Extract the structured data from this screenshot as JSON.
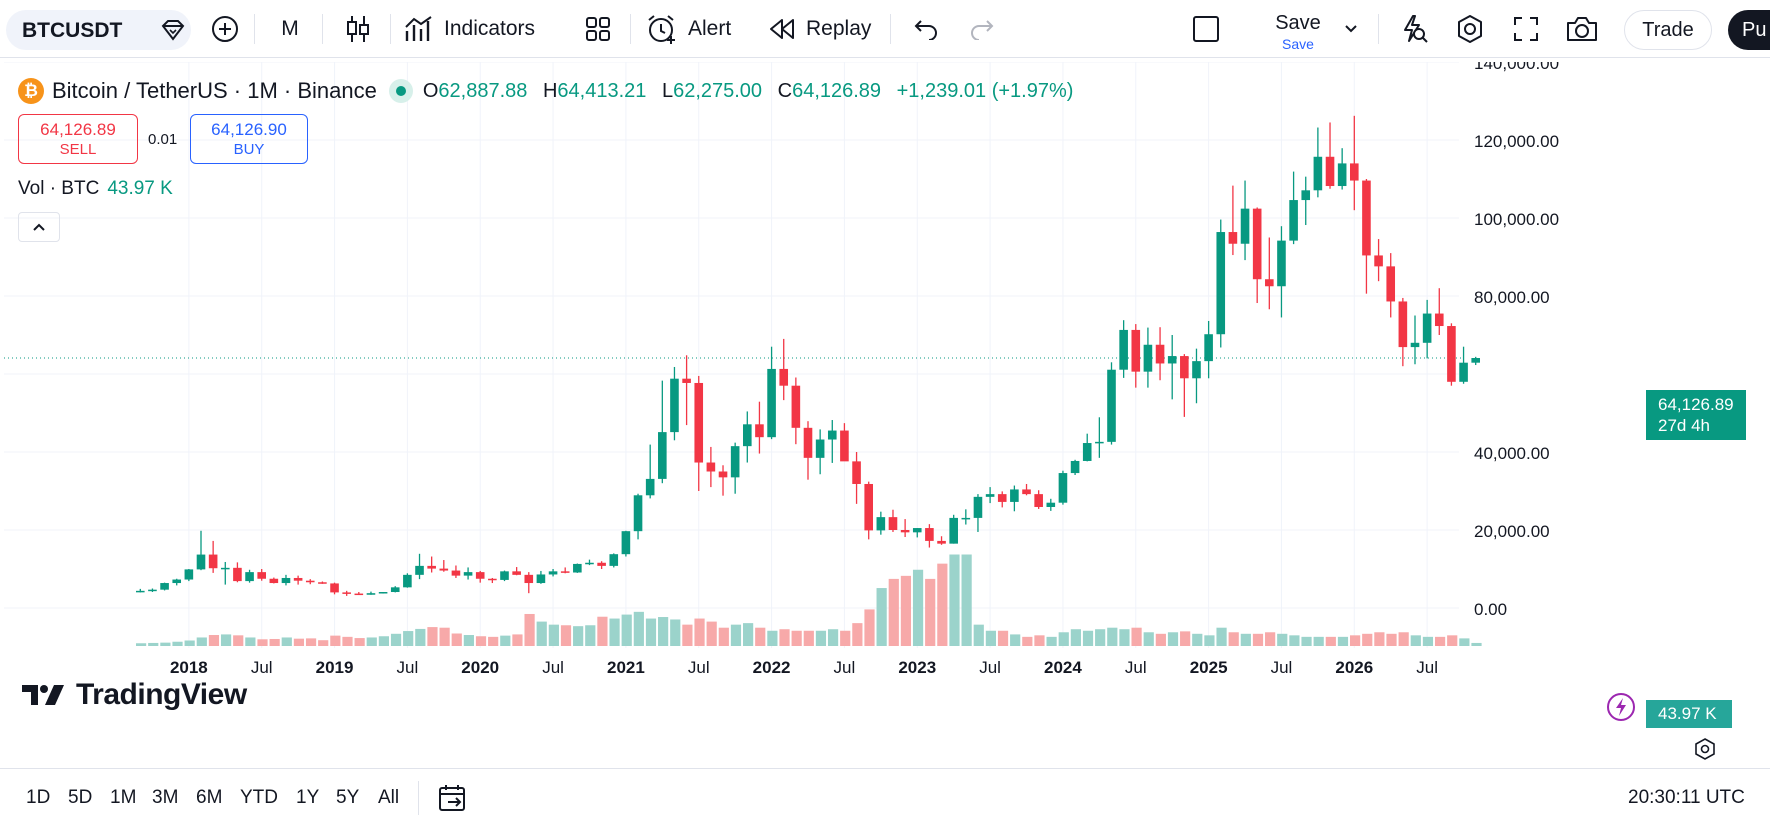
{
  "toolbar": {
    "symbol": "BTCUSDT",
    "interval": "M",
    "indicators_label": "Indicators",
    "alert_label": "Alert",
    "replay_label": "Replay",
    "save_label": "Save",
    "save_sub_label": "Save",
    "trade_label": "Trade",
    "publish_label": "Pu"
  },
  "legend": {
    "pair": "Bitcoin / TetherUS · 1M · Binance",
    "open_key": "O",
    "open": "62,887.88",
    "high_key": "H",
    "high": "64,413.21",
    "low_key": "L",
    "low": "62,275.00",
    "close_key": "C",
    "close": "64,126.89",
    "change": "+1,239.01 (+1.97%)"
  },
  "order": {
    "sell_price": "64,126.89",
    "sell_label": "SELL",
    "spread": "0.01",
    "buy_price": "64,126.90",
    "buy_label": "BUY"
  },
  "volume_legend": {
    "label": "Vol · BTC",
    "value": "43.97 K"
  },
  "brand": "TradingView",
  "last_price": {
    "price": "64,126.89",
    "countdown": "27d 4h"
  },
  "last_volume": "43.97 K",
  "colors": {
    "up": "#089981",
    "down": "#f23645",
    "vol_up": "#9bd3cb",
    "vol_down": "#f7a9a9",
    "accent": "#2962ff"
  },
  "bottom": {
    "ranges": [
      "1D",
      "5D",
      "1M",
      "3M",
      "6M",
      "YTD",
      "1Y",
      "5Y",
      "All"
    ],
    "clock": "20:30:11 UTC"
  },
  "chart_data": {
    "type": "candlestick",
    "price_axis_ticks": [
      "140,000.00",
      "120,000.00",
      "100,000.00",
      "80,000.00",
      "40,000.00",
      "20,000.00",
      "0.00"
    ],
    "time_axis_ticks": [
      "2018",
      "Jul",
      "2019",
      "Jul",
      "2020",
      "Jul",
      "2021",
      "Jul",
      "2022",
      "Jul",
      "2023",
      "Jul",
      "2024",
      "Jul",
      "2025",
      "Jul",
      "2026",
      "Jul"
    ],
    "ylim": [
      0,
      140000
    ],
    "grid": true,
    "ohlc": [
      [
        4300,
        4900,
        4000,
        4400
      ],
      [
        4400,
        5000,
        4100,
        4700
      ],
      [
        4700,
        6500,
        4500,
        6400
      ],
      [
        6400,
        7500,
        5800,
        7300
      ],
      [
        7300,
        10000,
        6900,
        9900
      ],
      [
        9900,
        19800,
        9700,
        13700
      ],
      [
        13700,
        17200,
        9000,
        10200
      ],
      [
        10200,
        11800,
        6000,
        10300
      ],
      [
        10300,
        11700,
        6600,
        6900
      ],
      [
        6900,
        9800,
        6500,
        9200
      ],
      [
        9200,
        10000,
        7000,
        7500
      ],
      [
        7500,
        7800,
        6300,
        6400
      ],
      [
        6400,
        8500,
        5800,
        7700
      ],
      [
        7700,
        8300,
        6000,
        7000
      ],
      [
        7000,
        7400,
        6100,
        6600
      ],
      [
        6600,
        6800,
        6200,
        6300
      ],
      [
        6300,
        6500,
        3500,
        4000
      ],
      [
        4000,
        4400,
        3100,
        3700
      ],
      [
        3700,
        4100,
        3400,
        3400
      ],
      [
        3400,
        4200,
        3400,
        3800
      ],
      [
        3800,
        4100,
        3700,
        4100
      ],
      [
        4100,
        5600,
        4000,
        5300
      ],
      [
        5300,
        8900,
        5200,
        8500
      ],
      [
        8500,
        13900,
        7400,
        10800
      ],
      [
        10800,
        13200,
        9100,
        10100
      ],
      [
        10100,
        12300,
        9300,
        9600
      ],
      [
        9600,
        10900,
        7700,
        8300
      ],
      [
        8300,
        10400,
        7300,
        9200
      ],
      [
        9200,
        9500,
        6500,
        7500
      ],
      [
        7500,
        7700,
        6400,
        7200
      ],
      [
        7200,
        9600,
        6900,
        9400
      ],
      [
        9400,
        10500,
        8400,
        8500
      ],
      [
        8500,
        9200,
        3800,
        6400
      ],
      [
        6400,
        9500,
        6200,
        8600
      ],
      [
        8600,
        10000,
        8100,
        9400
      ],
      [
        9400,
        10400,
        8900,
        9100
      ],
      [
        9100,
        11400,
        9000,
        11300
      ],
      [
        11300,
        12400,
        11000,
        11600
      ],
      [
        11600,
        12000,
        10000,
        10800
      ],
      [
        10800,
        14000,
        10400,
        13800
      ],
      [
        13800,
        19800,
        13200,
        19700
      ],
      [
        19700,
        29300,
        17600,
        28900
      ],
      [
        28900,
        41900,
        28100,
        33100
      ],
      [
        33100,
        58300,
        32000,
        45100
      ],
      [
        45100,
        61800,
        43000,
        58800
      ],
      [
        58800,
        64800,
        46900,
        57700
      ],
      [
        57700,
        59500,
        30000,
        37300
      ],
      [
        37300,
        41300,
        31000,
        35000
      ],
      [
        35000,
        36600,
        28800,
        33500
      ],
      [
        33500,
        42400,
        29300,
        41500
      ],
      [
        41500,
        50400,
        37300,
        47100
      ],
      [
        47100,
        52900,
        39600,
        43800
      ],
      [
        43800,
        67000,
        43300,
        61300
      ],
      [
        61300,
        69000,
        53300,
        57000
      ],
      [
        57000,
        59100,
        42000,
        46200
      ],
      [
        46200,
        47900,
        32900,
        38500
      ],
      [
        38500,
        45800,
        34300,
        43200
      ],
      [
        43200,
        48200,
        37200,
        45500
      ],
      [
        45500,
        47400,
        37700,
        37600
      ],
      [
        37600,
        40000,
        26700,
        31800
      ],
      [
        31800,
        32400,
        17600,
        19900
      ],
      [
        19900,
        24700,
        18800,
        23300
      ],
      [
        23300,
        25200,
        19500,
        20000
      ],
      [
        20000,
        22800,
        18200,
        19400
      ],
      [
        19400,
        20500,
        18100,
        20500
      ],
      [
        20500,
        21500,
        15500,
        17200
      ],
      [
        17200,
        18400,
        16200,
        16500
      ],
      [
        16500,
        23900,
        16500,
        23100
      ],
      [
        23100,
        25300,
        21400,
        23100
      ],
      [
        23100,
        29200,
        19500,
        28500
      ],
      [
        28500,
        31000,
        26900,
        29200
      ],
      [
        29200,
        29900,
        25800,
        27200
      ],
      [
        27200,
        31400,
        24800,
        30400
      ],
      [
        30400,
        31800,
        28900,
        29200
      ],
      [
        29200,
        30200,
        25400,
        25900
      ],
      [
        25900,
        28000,
        24900,
        27000
      ],
      [
        27000,
        35200,
        26500,
        34600
      ],
      [
        34600,
        38000,
        34100,
        37700
      ],
      [
        37700,
        44700,
        37600,
        42300
      ],
      [
        42300,
        48900,
        38500,
        42600
      ],
      [
        42600,
        63000,
        41900,
        61100
      ],
      [
        61100,
        73800,
        59000,
        71300
      ],
      [
        71300,
        72800,
        56500,
        60600
      ],
      [
        60600,
        71900,
        56500,
        67500
      ],
      [
        67500,
        72000,
        58400,
        62700
      ],
      [
        62700,
        70000,
        53500,
        64600
      ],
      [
        64600,
        65100,
        49000,
        58900
      ],
      [
        58900,
        66500,
        52500,
        63300
      ],
      [
        63300,
        73600,
        58900,
        70200
      ],
      [
        70200,
        99600,
        66800,
        96400
      ],
      [
        96400,
        108300,
        90500,
        93400
      ],
      [
        93400,
        109600,
        89200,
        102400
      ],
      [
        102400,
        102700,
        78200,
        84300
      ],
      [
        84300,
        95000,
        76600,
        82500
      ],
      [
        82500,
        97900,
        74500,
        94200
      ],
      [
        94200,
        111900,
        93300,
        104600
      ],
      [
        104600,
        110600,
        98200,
        107100
      ],
      [
        107100,
        123200,
        105300,
        115700
      ],
      [
        115700,
        124500,
        107500,
        108200
      ],
      [
        108200,
        117900,
        107300,
        114000
      ],
      [
        114000,
        126200,
        102000,
        109600
      ],
      [
        109600,
        110000,
        80600,
        90400
      ],
      [
        90400,
        94600,
        83800,
        87600
      ],
      [
        87600,
        91000,
        74500,
        78600
      ],
      [
        78600,
        79500,
        62000,
        66900
      ],
      [
        66900,
        75000,
        62500,
        68000
      ],
      [
        68000,
        79000,
        64000,
        75500
      ],
      [
        75500,
        82000,
        70000,
        72300
      ],
      [
        72300,
        73000,
        57000,
        58000
      ],
      [
        58000,
        67000,
        57500,
        62900
      ],
      [
        62900,
        64400,
        62300,
        64100
      ]
    ],
    "volume": [
      0.9,
      1.0,
      1.1,
      1.4,
      1.8,
      2.8,
      3.6,
      3.8,
      3.5,
      2.8,
      2.2,
      2.3,
      2.8,
      2.4,
      2.5,
      1.9,
      3.4,
      3.0,
      2.6,
      2.8,
      3.2,
      4.0,
      4.9,
      5.6,
      6.2,
      6.0,
      4.1,
      3.6,
      3.2,
      3.0,
      3.4,
      3.8,
      10.5,
      8.0,
      7.0,
      6.8,
      6.5,
      6.8,
      9.6,
      9.0,
      10.3,
      11.2,
      9.0,
      9.5,
      8.7,
      7.0,
      9.0,
      8.0,
      6.0,
      7.0,
      7.5,
      6.0,
      5.0,
      5.5,
      5.0,
      5.0,
      5.0,
      5.5,
      5.0,
      7.5,
      12.0,
      19.0,
      22.0,
      23.0,
      25.0,
      22.0,
      27.0,
      30.0,
      30.0,
      7.0,
      5.0,
      5.0,
      3.8,
      3.0,
      3.5,
      3.0,
      4.5,
      5.5,
      5.0,
      5.5,
      6.0,
      5.5,
      6.0,
      4.5,
      4.0,
      4.5,
      4.8,
      4.0,
      3.5,
      6.0,
      4.5,
      4.0,
      4.0,
      4.5,
      4.0,
      3.5,
      3.0,
      3.0,
      3.0,
      3.0,
      3.5,
      4.0,
      4.5,
      4.0,
      4.5,
      3.5,
      3.0,
      3.0,
      3.5,
      2.5,
      1.0
    ]
  }
}
